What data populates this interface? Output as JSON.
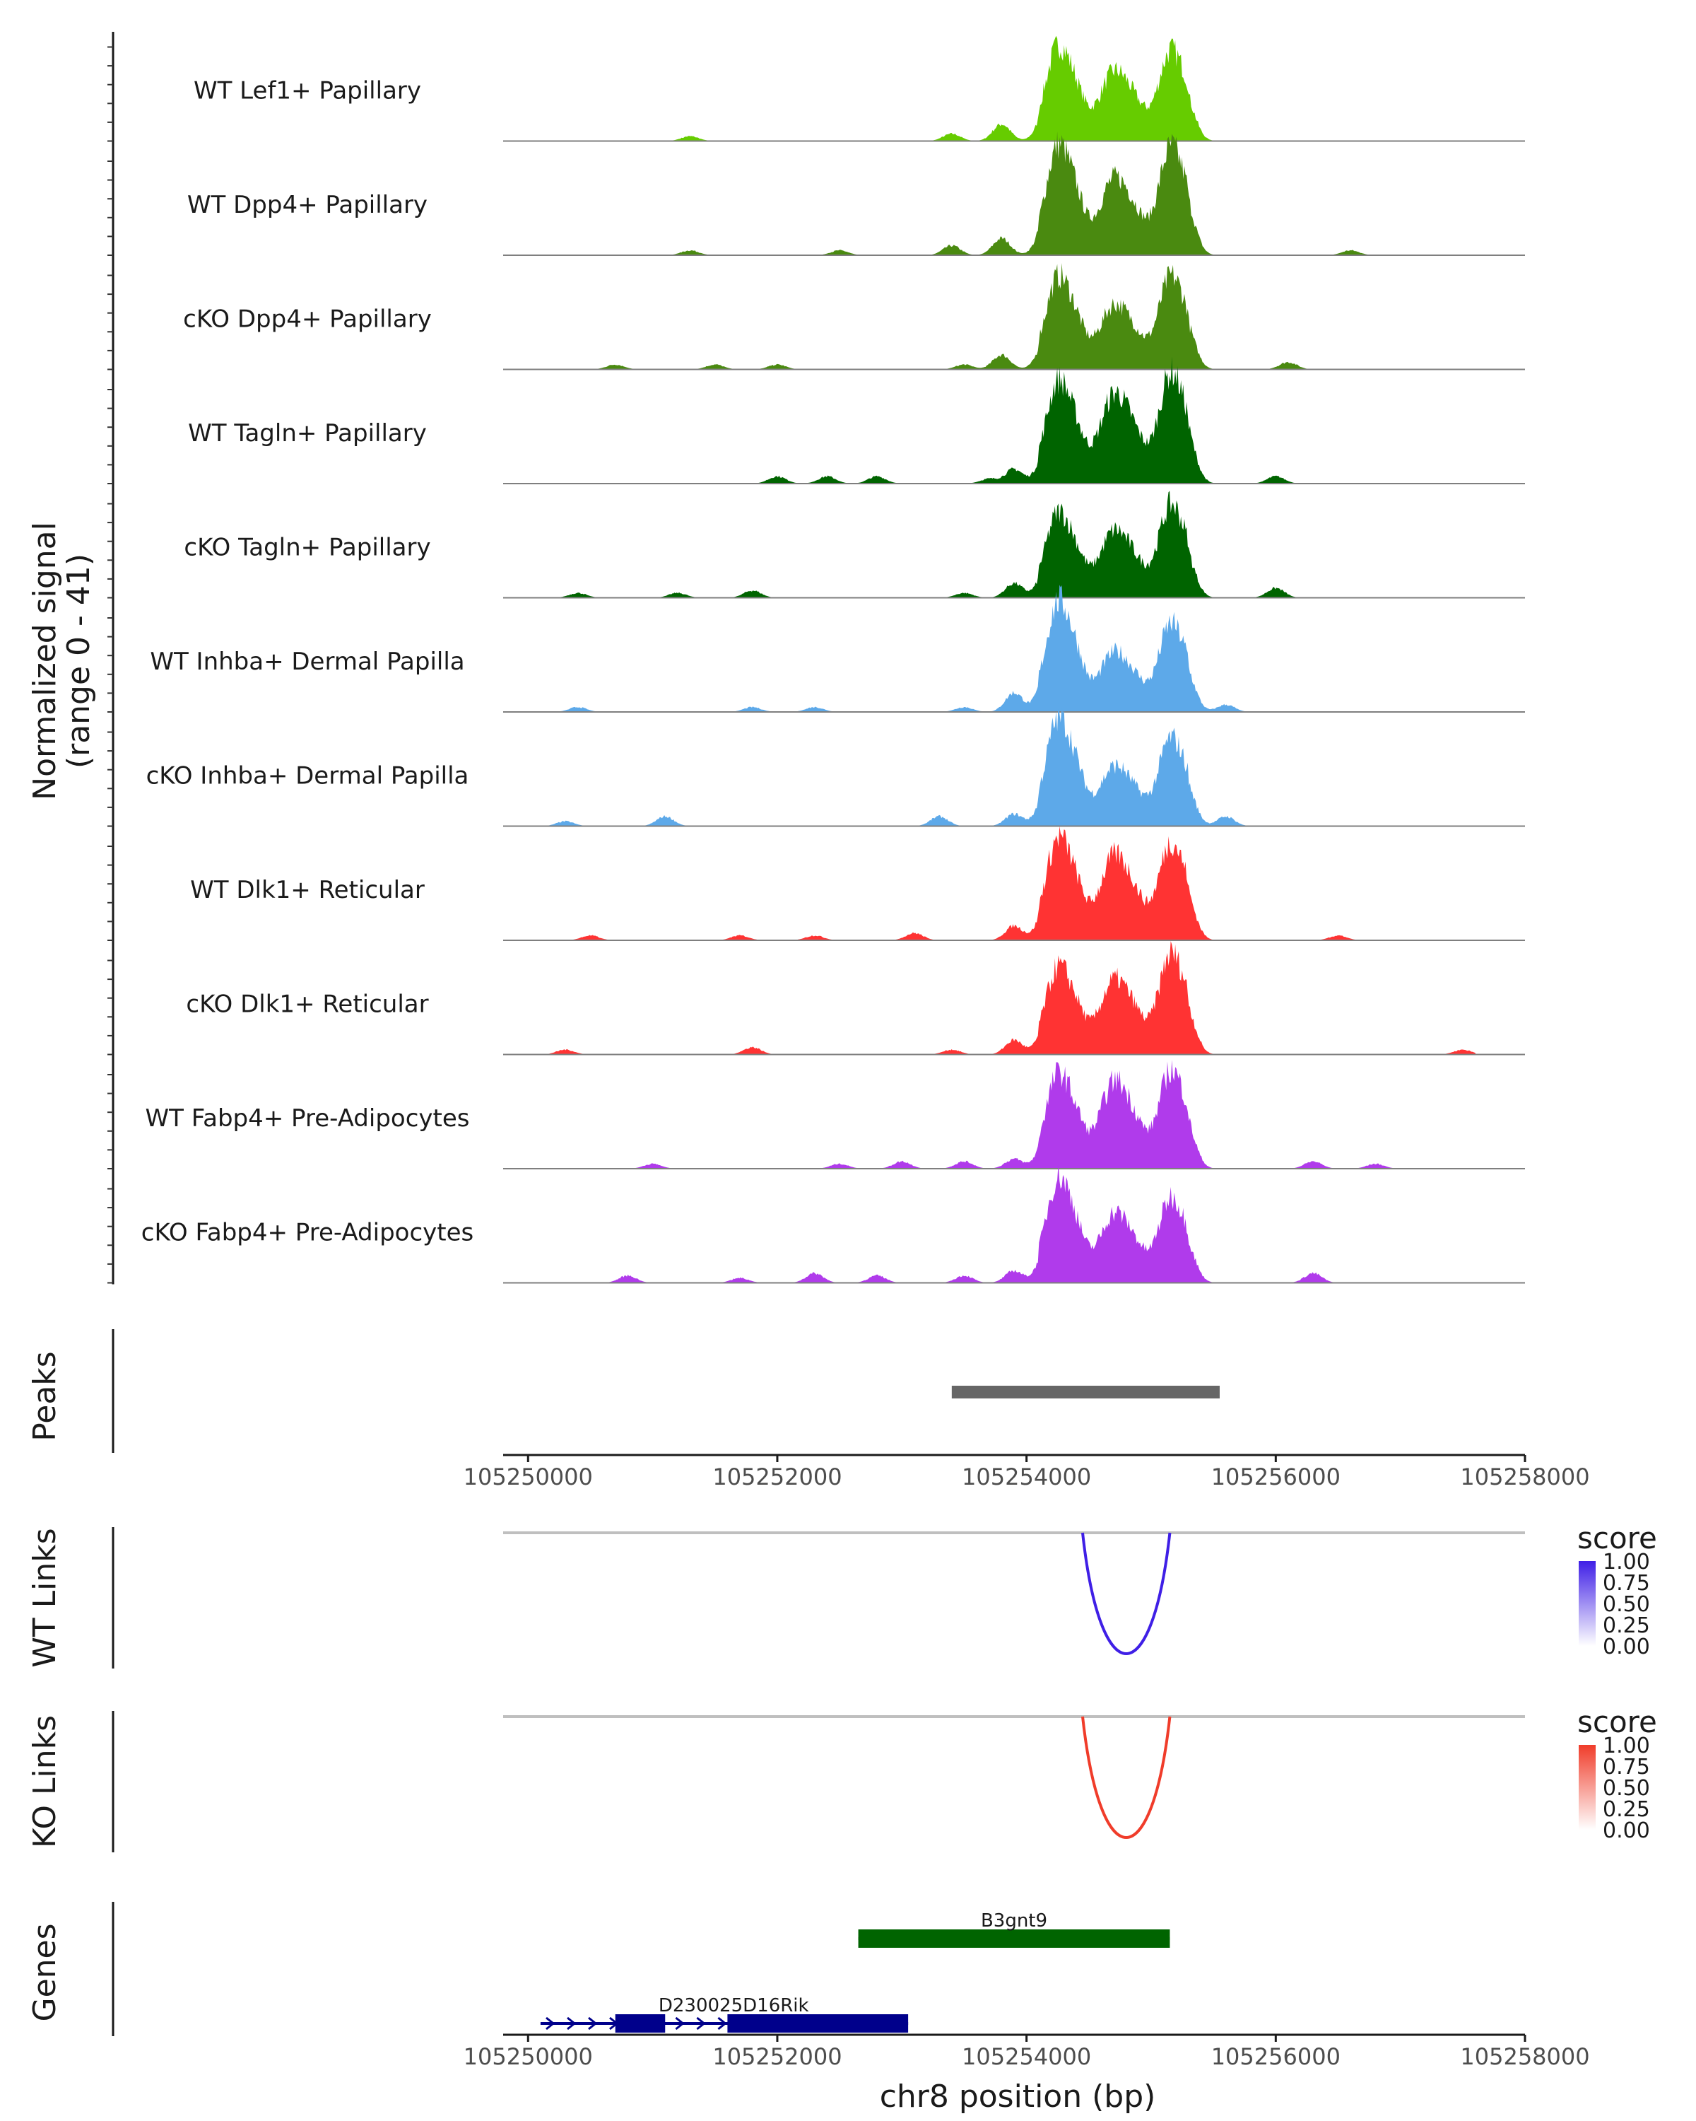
{
  "chart_data": {
    "type": "area",
    "title": "",
    "y_axis_label": "Normalized signal",
    "y_axis_range_label": "(range 0 - 41)",
    "ylim": [
      0,
      41
    ],
    "xlabel": "chr8 position (bp)",
    "xlim": [
      105249800,
      105258000
    ],
    "x_ticks": [
      "105250000",
      "105252000",
      "105254000",
      "105256000",
      "105258000"
    ],
    "x_tick_values": [
      105250000,
      105252000,
      105254000,
      105256000,
      105258000
    ],
    "main_peaks": [
      {
        "center": 105254250,
        "width": 95
      },
      {
        "center": 105254700,
        "width": 110
      },
      {
        "center": 105255150,
        "width": 90
      }
    ],
    "tracks": [
      {
        "name": "WT Lef1+ Papillary",
        "color": "#66CC00",
        "peak_heights": [
          34,
          24,
          32
        ],
        "small_bumps": [
          [
            105251300,
            2
          ],
          [
            105253400,
            3
          ],
          [
            105253800,
            7
          ]
        ]
      },
      {
        "name": "WT Dpp4+ Papillary",
        "color": "#4A8A10",
        "peak_heights": [
          40,
          27,
          39
        ],
        "small_bumps": [
          [
            105251300,
            2
          ],
          [
            105252500,
            2
          ],
          [
            105253400,
            4
          ],
          [
            105253800,
            7
          ],
          [
            105256600,
            2
          ]
        ]
      },
      {
        "name": "cKO Dpp4+ Papillary",
        "color": "#4A8A10",
        "peak_heights": [
          33,
          22,
          33
        ],
        "small_bumps": [
          [
            105250700,
            2
          ],
          [
            105251500,
            2
          ],
          [
            105252000,
            2
          ],
          [
            105253500,
            2
          ],
          [
            105253800,
            6
          ],
          [
            105256100,
            3
          ]
        ]
      },
      {
        "name": "WT Tagln+ Papillary",
        "color": "#006400",
        "peak_heights": [
          37,
          32,
          40
        ],
        "small_bumps": [
          [
            105252000,
            3
          ],
          [
            105252400,
            3
          ],
          [
            105252800,
            3
          ],
          [
            105253700,
            2
          ],
          [
            105253900,
            6
          ],
          [
            105256000,
            3
          ]
        ]
      },
      {
        "name": "cKO Tagln+ Papillary",
        "color": "#006400",
        "peak_heights": [
          30,
          23,
          33
        ],
        "small_bumps": [
          [
            105250400,
            2
          ],
          [
            105251200,
            2
          ],
          [
            105251800,
            3
          ],
          [
            105253500,
            2
          ],
          [
            105253900,
            6
          ],
          [
            105256000,
            4
          ]
        ]
      },
      {
        "name": "WT Inhba+ Dermal Papilla",
        "color": "#5DA9E9",
        "peak_heights": [
          40,
          20,
          31
        ],
        "small_bumps": [
          [
            105250400,
            2
          ],
          [
            105251800,
            2
          ],
          [
            105252300,
            2
          ],
          [
            105253500,
            2
          ],
          [
            105253900,
            8
          ],
          [
            105255600,
            3
          ]
        ]
      },
      {
        "name": "cKO Inhba+ Dermal Papilla",
        "color": "#5DA9E9",
        "peak_heights": [
          39,
          20,
          31
        ],
        "small_bumps": [
          [
            105250300,
            2
          ],
          [
            105251100,
            4
          ],
          [
            105253300,
            4
          ],
          [
            105253900,
            5
          ],
          [
            105255600,
            4
          ]
        ]
      },
      {
        "name": "WT Dlk1+ Reticular",
        "color": "#FF3333",
        "peak_heights": [
          37,
          30,
          35
        ],
        "small_bumps": [
          [
            105250500,
            2
          ],
          [
            105251700,
            2
          ],
          [
            105252300,
            2
          ],
          [
            105253100,
            3
          ],
          [
            105253900,
            6
          ],
          [
            105256500,
            2
          ]
        ]
      },
      {
        "name": "cKO Dlk1+ Reticular",
        "color": "#FF3333",
        "peak_heights": [
          31,
          26,
          36
        ],
        "small_bumps": [
          [
            105250300,
            2
          ],
          [
            105251800,
            3
          ],
          [
            105253400,
            2
          ],
          [
            105253900,
            6
          ],
          [
            105257500,
            2
          ]
        ]
      },
      {
        "name": "WT Fabp4+ Pre-Adipocytes",
        "color": "#B03BEB",
        "peak_heights": [
          34,
          31,
          35
        ],
        "small_bumps": [
          [
            105251000,
            2
          ],
          [
            105252500,
            2
          ],
          [
            105253000,
            3
          ],
          [
            105253500,
            3
          ],
          [
            105253900,
            4
          ],
          [
            105256300,
            3
          ],
          [
            105256800,
            2
          ]
        ]
      },
      {
        "name": "cKO Fabp4+ Pre-Adipocytes",
        "color": "#B03BEB",
        "peak_heights": [
          38,
          24,
          30
        ],
        "small_bumps": [
          [
            105250800,
            3
          ],
          [
            105251700,
            2
          ],
          [
            105252300,
            4
          ],
          [
            105252800,
            3
          ],
          [
            105253500,
            3
          ],
          [
            105253900,
            5
          ],
          [
            105256300,
            4
          ]
        ]
      }
    ],
    "peaks_label": "Peaks",
    "peaks": [
      {
        "start": 105253400,
        "end": 105255550,
        "color": "#666666"
      }
    ],
    "links": [
      {
        "label": "WT Links",
        "start": 105254450,
        "end": 105255150,
        "score": 1.0,
        "color": "#3F1FE6",
        "legend_title": "score",
        "legend_values": [
          "1.00",
          "0.75",
          "0.50",
          "0.25",
          "0.00"
        ],
        "legend_gradient": [
          "#3F1FE6",
          "#ffffff"
        ]
      },
      {
        "label": "KO Links",
        "start": 105254450,
        "end": 105255150,
        "score": 1.0,
        "color": "#F03C2A",
        "legend_title": "score",
        "legend_values": [
          "1.00",
          "0.75",
          "0.50",
          "0.25",
          "0.00"
        ],
        "legend_gradient": [
          "#F03C2A",
          "#ffffff"
        ]
      }
    ],
    "genes_label": "Genes",
    "genes": [
      {
        "name": "B3gnt9",
        "color": "#006400",
        "start": 105252650,
        "end": 105255150,
        "exons": [
          [
            105252650,
            105255150
          ]
        ],
        "strand": "",
        "row": 0
      },
      {
        "name": "D230025D16Rik",
        "color": "#00008B",
        "start": 105250100,
        "end": 105253050,
        "exons": [
          [
            105250700,
            105251100
          ],
          [
            105251600,
            105253050
          ]
        ],
        "strand": "+",
        "row": 1
      }
    ]
  }
}
